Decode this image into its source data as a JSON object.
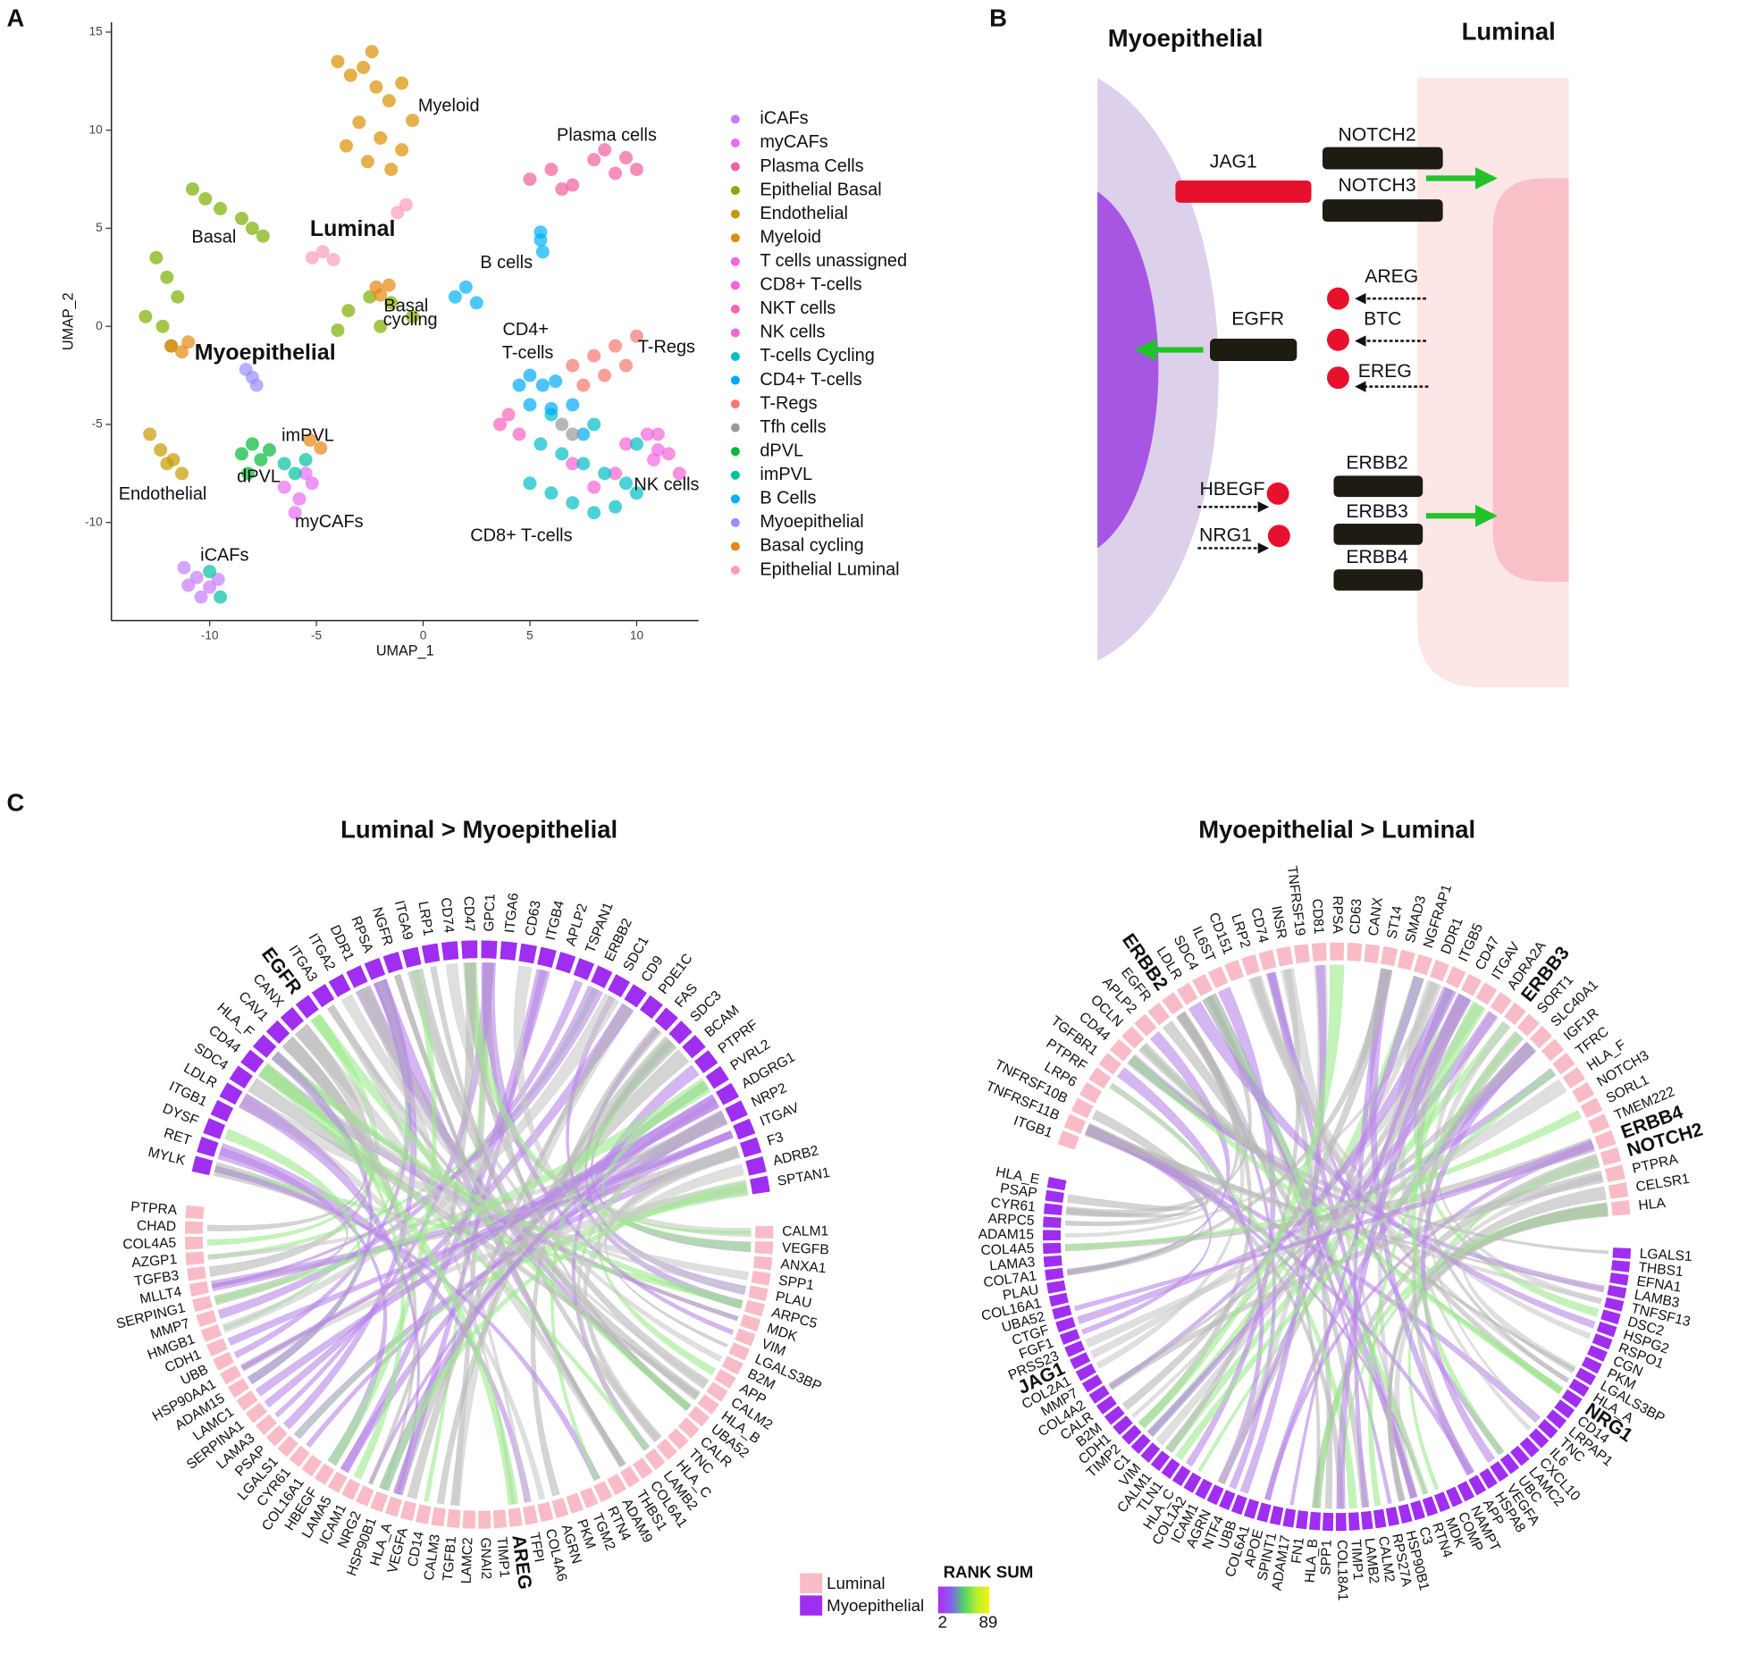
{
  "panel_labels": [
    "A",
    "B",
    "C"
  ],
  "chart_data": {
    "type": "scatter",
    "xlabel": "UMAP_1",
    "ylabel": "UMAP_2",
    "xlim": [
      -14.6,
      12.9
    ],
    "ylim": [
      -15,
      15.5
    ],
    "xticks": [
      -10,
      -5,
      0,
      5,
      10
    ],
    "yticks": [
      -10,
      -5,
      0,
      5,
      10,
      15
    ],
    "series": [
      {
        "name": "iCAFs",
        "color": "#c77cff",
        "x": [
          -11.2,
          -10.6,
          -10,
          -9.6,
          -10.4,
          -11
        ],
        "y": [
          -12.3,
          -12.8,
          -13.3,
          -12.9,
          -13.8,
          -13.2
        ]
      },
      {
        "name": "myCAFs",
        "color": "#e76bf3",
        "x": [
          -6.5,
          -5.8,
          -5.2,
          -6,
          -5.5
        ],
        "y": [
          -8.2,
          -8.8,
          -8,
          -9.5,
          -7.5
        ]
      },
      {
        "name": "Plasma Cells",
        "color": "#f0609e",
        "x": [
          5,
          6,
          7,
          8,
          9,
          9.5,
          10,
          6.5,
          8.5
        ],
        "y": [
          7.5,
          8,
          7.2,
          8.5,
          7.8,
          8.6,
          8,
          7,
          9
        ]
      },
      {
        "name": "Epithelial Basal",
        "color": "#7cae00",
        "x": [
          -10.8,
          -10.2,
          -9.5,
          -8.5,
          -8,
          -7.5,
          -12.5,
          -12,
          -11.5,
          -13,
          -12.2,
          -11.8,
          -3.5,
          -2.5,
          -1.5,
          -0.5,
          -4,
          -2
        ],
        "y": [
          7,
          6.5,
          6,
          5.5,
          5,
          4.6,
          3.5,
          2.5,
          1.5,
          0.5,
          0,
          -1,
          0.8,
          1.5,
          1.2,
          0.5,
          -0.2,
          0
        ]
      },
      {
        "name": "Endothelial",
        "color": "#c49a00",
        "x": [
          -12.8,
          -12.3,
          -11.7,
          -11.3,
          -12
        ],
        "y": [
          -5.5,
          -6.3,
          -6.8,
          -7.5,
          -7
        ]
      },
      {
        "name": "Myeloid",
        "color": "#d89000",
        "x": [
          -4,
          -3.4,
          -2.8,
          -2.2,
          -1.6,
          -1,
          -0.5,
          -3,
          -2,
          -1,
          -3.6,
          -2.6,
          -1.5,
          -2.4
        ],
        "y": [
          13.5,
          12.8,
          13.2,
          12.2,
          11.5,
          12.4,
          10.5,
          10.4,
          9.6,
          9,
          9.2,
          8.4,
          8,
          14
        ]
      },
      {
        "name": "T cells unassigned",
        "color": "#f564e3",
        "x": [
          10.5,
          11,
          10.8
        ],
        "y": [
          -5.5,
          -6.3,
          -6.8
        ]
      },
      {
        "name": "CD8+ T-cells",
        "color": "#fb61d7",
        "x": [
          7,
          8,
          9,
          9.5
        ],
        "y": [
          -7,
          -8.2,
          -7.5,
          -6
        ]
      },
      {
        "name": "NKT cells",
        "color": "#ff62bc",
        "x": [
          4,
          4.5,
          3.6
        ],
        "y": [
          -4.5,
          -5.5,
          -5
        ]
      },
      {
        "name": "NK cells",
        "color": "#ef67d6",
        "x": [
          11,
          11.5,
          12
        ],
        "y": [
          -5.5,
          -6.5,
          -7.5
        ]
      },
      {
        "name": "T-cells Cycling",
        "color": "#00bfc4",
        "x": [
          5,
          6,
          7,
          8,
          9,
          10,
          5.5,
          6.5,
          7.5,
          8.5,
          9.5,
          6,
          8,
          10
        ],
        "y": [
          -8,
          -8.5,
          -9,
          -9.5,
          -9.2,
          -8.5,
          -6,
          -6.5,
          -7,
          -7.5,
          -8,
          -4.5,
          -5,
          -6
        ]
      },
      {
        "name": "CD4+ T-cells",
        "color": "#00a9ff",
        "x": [
          5,
          5.6,
          6.2,
          5,
          6,
          7,
          4.5,
          7.5
        ],
        "y": [
          -2.5,
          -3,
          -2.8,
          -4,
          -4.2,
          -4,
          -3,
          -5.5
        ]
      },
      {
        "name": "T-Regs",
        "color": "#f8766d",
        "x": [
          7,
          8,
          9,
          10,
          8.5,
          9.5,
          7.5
        ],
        "y": [
          -2,
          -1.5,
          -1,
          -0.5,
          -2.5,
          -2,
          -3
        ]
      },
      {
        "name": "Tfh cells",
        "color": "#999999",
        "x": [
          6.5,
          7
        ],
        "y": [
          -5,
          -5.5
        ]
      },
      {
        "name": "dPVL",
        "color": "#00ba38",
        "x": [
          -8.5,
          -8,
          -7.6,
          -7.2,
          -8.2
        ],
        "y": [
          -6.5,
          -6,
          -6.8,
          -6.3,
          -7.5
        ]
      },
      {
        "name": "imPVL",
        "color": "#00c19f",
        "x": [
          -6.5,
          -6,
          -5.5,
          -10,
          -9.5
        ],
        "y": [
          -7,
          -7.5,
          -6.8,
          -12.5,
          -13.8
        ]
      },
      {
        "name": "B Cells",
        "color": "#00b0f6",
        "x": [
          1.5,
          2,
          2.5,
          5.5,
          5.6,
          5.5
        ],
        "y": [
          1.5,
          2,
          1.2,
          4.4,
          3.8,
          4.8
        ]
      },
      {
        "name": "Myoepithelial",
        "color": "#9590ff",
        "x": [
          -8.3,
          -8,
          -7.8
        ],
        "y": [
          -2.2,
          -2.6,
          -3
        ]
      },
      {
        "name": "Basal cycling",
        "color": "#e68613",
        "x": [
          -2.2,
          -2,
          -1.6,
          -11.8,
          -11.3,
          -11,
          -5.3,
          -4.8
        ],
        "y": [
          2,
          1.6,
          2.1,
          -1,
          -1.3,
          -0.8,
          -5.8,
          -6.2
        ]
      },
      {
        "name": "Epithelial Luminal",
        "color": "#fc9db4",
        "x": [
          -5.2,
          -4.7,
          -4.2,
          -0.8,
          -1.2
        ],
        "y": [
          3.5,
          3.8,
          3.4,
          6.2,
          5.8
        ]
      }
    ],
    "annotations": [
      {
        "text": "Myeloid",
        "x": 1.2,
        "y": 11.2
      },
      {
        "text": "Plasma cells",
        "x": 8.6,
        "y": 9.7
      },
      {
        "text": "Luminal",
        "x": -3.3,
        "y": 4.9,
        "bold": true
      },
      {
        "text": "Basal",
        "x": -9.8,
        "y": 4.5
      },
      {
        "text": "B cells",
        "x": 3.9,
        "y": 3.2
      },
      {
        "text": "Basal",
        "x": -0.8,
        "y": 1.0
      },
      {
        "text": "cycling",
        "x": -0.6,
        "y": 0.3
      },
      {
        "text": "CD4+",
        "x": 4.8,
        "y": -0.2
      },
      {
        "text": "T-cells",
        "x": 4.9,
        "y": -1.4
      },
      {
        "text": "T-Regs",
        "x": 11.4,
        "y": -1.1
      },
      {
        "text": "Myoepithelial",
        "x": -7.4,
        "y": -1.4,
        "bold": true
      },
      {
        "text": "imPVL",
        "x": -5.4,
        "y": -5.6
      },
      {
        "text": "dPVL",
        "x": -7.7,
        "y": -7.7
      },
      {
        "text": "Endothelial",
        "x": -12.2,
        "y": -8.6
      },
      {
        "text": "NK cells",
        "x": 11.4,
        "y": -8.1
      },
      {
        "text": "myCAFs",
        "x": -4.4,
        "y": -10
      },
      {
        "text": "CD8+ T-cells",
        "x": 4.6,
        "y": -10.7
      },
      {
        "text": "iCAFs",
        "x": -9.3,
        "y": -11.7
      }
    ]
  },
  "diagram": {
    "title_left": "Myoepithelial",
    "title_right": "Luminal",
    "genes": [
      "JAG1",
      "NOTCH2",
      "NOTCH3",
      "AREG",
      "BTC",
      "EREG",
      "EGFR",
      "HBEGF",
      "NRG1",
      "ERBB2",
      "ERBB3",
      "ERBB4"
    ]
  },
  "legend": {
    "groups": [
      {
        "name": "Luminal",
        "color": "#f9bcc6"
      },
      {
        "name": "Myoepithelial",
        "color": "#a02ef0"
      }
    ]
  },
  "colorbar": {
    "title": "RANK SUM",
    "lim": [
      2,
      89
    ],
    "colors": [
      "#b02ef0",
      "#8a5cf0",
      "#4cd26a",
      "#b6f030",
      "#f6f00e"
    ]
  },
  "chord_colors": [
    "#b8b8b8",
    "#9ceb8c",
    "#b887e8",
    "#c9c9c9"
  ],
  "chords": [
    {
      "title": "Luminal > Myoepithelial",
      "arcs": [
        {
          "group": 1,
          "labels": [
            "MYLK",
            "RET",
            "DYSF",
            "ITGB1",
            "LDLR",
            "SDC4",
            "CD44",
            "HLA_F",
            "CAV1",
            "CANX",
            {
              "text": "EGFR",
              "bold": true
            },
            "ITGA3",
            "ITGA2",
            "DDR1",
            "RPSA",
            "NGFR",
            "ITGA9",
            "LRP1",
            "CD74",
            "CD47",
            "GPC1",
            "ITGA6",
            "CD63",
            "ITGB4",
            "APLP2",
            "TSPAN1",
            "ERBB2",
            "SDC1",
            "CD9",
            "PDE1C",
            "FAS",
            "SDC3",
            "BCAM",
            "PTPRF",
            "PVRL2",
            "ADGRG1",
            "NRP2",
            "ITGAV",
            "F3",
            "ADRB2",
            "SPTAN1"
          ]
        },
        {
          "group": 0,
          "labels": [
            "CALM1",
            "VEGFB",
            "ANXA1",
            "SPP1",
            "PLAU",
            "ARPC5",
            "MDK",
            "VIM",
            "LGALS3BP",
            "B2M",
            "APP",
            "CALM2",
            "HLA_B",
            "UBA52",
            "CALR",
            "TNC",
            "HLA_C",
            "LAMB2",
            "COL6A1",
            "THBS1",
            "ADAM9",
            "RTN4",
            "TGM2",
            "PKM",
            "AGRN",
            "COL4A6",
            "TFPI",
            {
              "text": "AREG",
              "bold": true
            },
            "TIMP1",
            "GNAI2",
            "LAMC2",
            "TGFB1",
            "CALM3",
            "CD14",
            "VEGFA",
            "HLA_A",
            "HSP90B1",
            "NRG2",
            "ICAM1",
            "LAMA5",
            "HBEGF",
            "COL16A1",
            "CYR61",
            "LGALS1",
            "PSAP",
            "LAMA3",
            "SERPINA1",
            "LAMC1",
            "ADAM15",
            "HSP90AA1",
            "UBB",
            "CDH1",
            "HMGB1",
            "MMP7",
            "SERPING1",
            "MLLT4",
            "TGFB3",
            "AZGP1",
            "COL4A5",
            "CHAD",
            "PTPRA"
          ]
        }
      ]
    },
    {
      "title": "Myoepithelial > Luminal",
      "arcs": [
        {
          "group": 0,
          "labels": [
            "ITGB1",
            "TNFRSF11B",
            "TNFRSF10B",
            "LRP6",
            "PTPRF",
            "TGFBR1",
            "CD44",
            "OCLN",
            "APLP2",
            "EGFR",
            {
              "text": "ERBB2",
              "bold": true
            },
            "LDLR",
            "SDC4",
            "IL6ST",
            "CD151",
            "LRP2",
            "CD74",
            "INSR",
            "TNFRSF19",
            "CD81",
            "RPSA",
            "CD63",
            "CANX",
            "ST14",
            "SMAD3",
            "NGFRAP1",
            "DDR1",
            "ITGB5",
            "CD47",
            "ITGAV",
            "ADRA2A",
            {
              "text": "ERBB3",
              "bold": true
            },
            "SORT1",
            "SLC40A1",
            "IGF1R",
            "TFRC",
            "HLA_F",
            "NOTCH3",
            "SORL1",
            "TMEM222",
            {
              "text": "ERBB4",
              "bold": true
            },
            {
              "text": "NOTCH2",
              "bold": true
            },
            "PTPRA",
            "CELSR1",
            "HLA"
          ]
        },
        {
          "group": 1,
          "labels": [
            "LGALS1",
            "THBS1",
            "EFNA1",
            "LAMB3",
            "TNFSF13",
            "DSC2",
            "HSPG2",
            "RSPO1",
            "CGN",
            "PKM",
            "LGALS3BP",
            "HLA_A",
            {
              "text": "NRG1",
              "bold": true
            },
            "CD14",
            "LRPAP1",
            "TNC",
            "IL6",
            "CXCL10",
            "LAMC2",
            "UBC",
            "VEGFA",
            "HSPA8",
            "APP",
            "NAMPT",
            "COMP",
            "MDK",
            "RTN4",
            "C3",
            "HSP90B1",
            "RPS27A",
            "CALM2",
            "LAMB2",
            "TIMP1",
            "COL18A1",
            "SPP1",
            "HLA_B",
            "FN1",
            "ADAM17",
            "SPINT1",
            "APOE",
            "COL6A1",
            "UBB",
            "NTF4",
            "AGRN",
            "ICAM1",
            "COL1A2",
            "HLA_C",
            "TLN1",
            "CALM1",
            "VIM",
            "C1",
            "TIMP2",
            "CDH1",
            "B2M",
            "CALR",
            "COL4A2",
            "MMP7",
            "COL2A1",
            {
              "text": "JAG1",
              "bold": true
            },
            "PRSS23",
            "FGF1",
            "CTGF",
            "UBA52",
            "COL16A1",
            "PLAU",
            "COL7A1",
            "LAMA3",
            "COL4A5",
            "ADAM15",
            "ARPC5",
            "CYR61",
            "PSAP",
            "HLA_E"
          ]
        }
      ]
    }
  ]
}
